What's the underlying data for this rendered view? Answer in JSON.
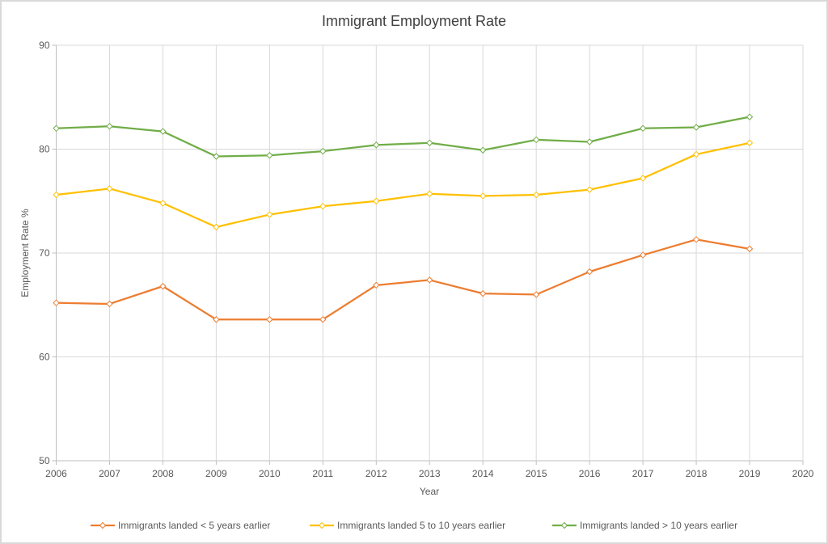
{
  "chart_data": {
    "type": "line",
    "title": "Immigrant Employment Rate",
    "xlabel": "Year",
    "ylabel": "Employment Rate %",
    "xlim": [
      2006,
      2020
    ],
    "ylim": [
      50,
      90
    ],
    "x_ticks": [
      "2006",
      "2007",
      "2008",
      "2009",
      "2010",
      "2011",
      "2012",
      "2013",
      "2014",
      "2015",
      "2016",
      "2017",
      "2018",
      "2019",
      "2020"
    ],
    "y_ticks": [
      "50",
      "60",
      "70",
      "80",
      "90"
    ],
    "grid": true,
    "legend_position": "bottom",
    "x": [
      2006,
      2007,
      2008,
      2009,
      2010,
      2011,
      2012,
      2013,
      2014,
      2015,
      2016,
      2017,
      2018,
      2019
    ],
    "series": [
      {
        "name": "Immigrants landed < 5 years earlier",
        "color": "#ed7d31",
        "marker": "diamond-open",
        "values": [
          65.2,
          65.1,
          66.8,
          63.6,
          63.6,
          63.6,
          66.9,
          67.4,
          66.1,
          66.0,
          68.2,
          69.8,
          71.3,
          70.4
        ]
      },
      {
        "name": "Immigrants landed 5 to 10 years earlier",
        "color": "#ffc000",
        "marker": "diamond-open",
        "values": [
          75.6,
          76.2,
          74.8,
          72.5,
          73.7,
          74.5,
          75.0,
          75.7,
          75.5,
          75.6,
          76.1,
          77.2,
          79.5,
          80.6
        ]
      },
      {
        "name": "Immigrants landed > 10 years earlier",
        "color": "#70ad47",
        "marker": "diamond-open",
        "values": [
          82.0,
          82.2,
          81.7,
          79.3,
          79.4,
          79.8,
          80.4,
          80.6,
          79.9,
          80.9,
          80.7,
          82.0,
          82.1,
          83.1
        ]
      }
    ]
  }
}
